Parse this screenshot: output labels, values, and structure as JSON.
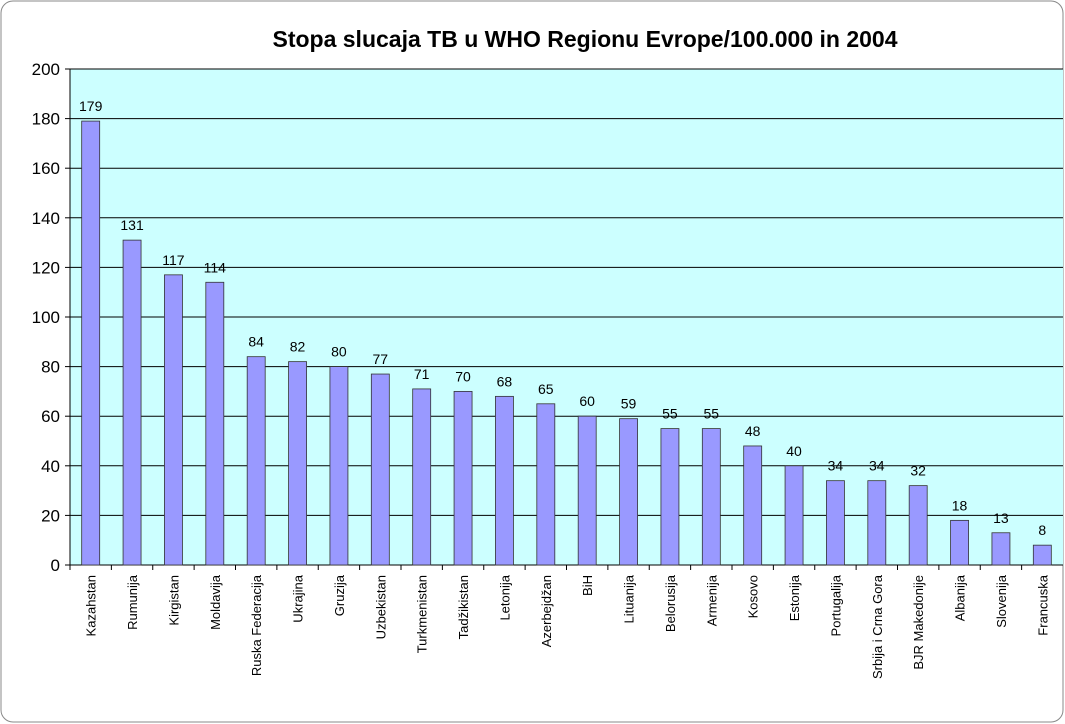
{
  "chart_data": {
    "type": "bar",
    "title": "Stopa slucaja TB u WHO Regionu Evrope/100.000 in 2004",
    "categories": [
      "Kazahstan",
      "Rumunija",
      "Kirgistan",
      "Moldavija",
      "Ruska Federacija",
      "Ukrajina",
      "Gruzija",
      "Uzbekistan",
      "Turkmenistan",
      "Tadžikistan",
      "Letonija",
      "Azerbejdžan",
      "BiH",
      "Lituanija",
      "Belorusija",
      "Armenija",
      "Kosovo",
      "Estonija",
      "Portugalija",
      "Srbija i Crna Gora",
      "BJR Makedonije",
      "Albanija",
      "Slovenija",
      "Francuska"
    ],
    "values": [
      179,
      131,
      117,
      114,
      84,
      82,
      80,
      77,
      71,
      70,
      68,
      65,
      60,
      59,
      55,
      55,
      48,
      40,
      34,
      34,
      32,
      18,
      13,
      8
    ],
    "color": "#9999ff",
    "background": "#ccffff",
    "ylim": [
      0,
      200
    ],
    "yticks": [
      0,
      20,
      40,
      60,
      80,
      100,
      120,
      140,
      160,
      180,
      200
    ],
    "grid": true
  }
}
